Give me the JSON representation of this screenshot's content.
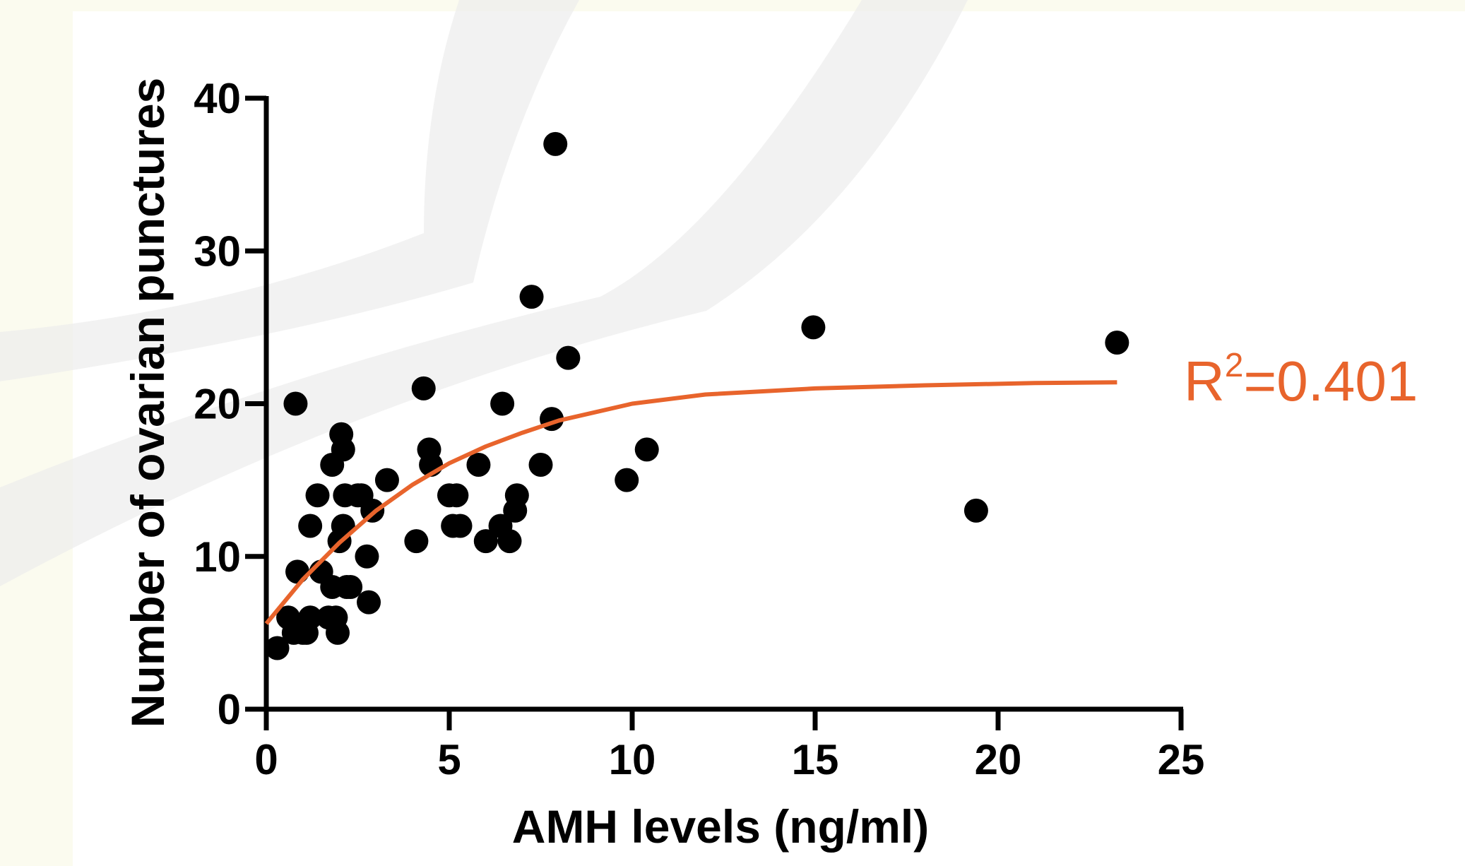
{
  "chart_data": {
    "type": "scatter",
    "xlabel": "AMH levels (ng/ml)",
    "ylabel": "Number of ovarian punctures",
    "xlim": [
      0,
      25
    ],
    "ylim": [
      0,
      40
    ],
    "x_ticks": [
      "0",
      "5",
      "10",
      "15",
      "20",
      "25"
    ],
    "y_ticks": [
      "0",
      "10",
      "20",
      "30",
      "40"
    ],
    "grid": false,
    "point_color": "#000000",
    "fit_color": "#e8642c",
    "points": [
      {
        "x": 0.3,
        "y": 4
      },
      {
        "x": 0.6,
        "y": 6
      },
      {
        "x": 0.75,
        "y": 5
      },
      {
        "x": 0.8,
        "y": 20
      },
      {
        "x": 0.85,
        "y": 9
      },
      {
        "x": 1.0,
        "y": 5
      },
      {
        "x": 1.1,
        "y": 5
      },
      {
        "x": 1.2,
        "y": 6
      },
      {
        "x": 1.2,
        "y": 12
      },
      {
        "x": 1.4,
        "y": 14
      },
      {
        "x": 1.5,
        "y": 9
      },
      {
        "x": 1.7,
        "y": 6
      },
      {
        "x": 1.8,
        "y": 16
      },
      {
        "x": 1.8,
        "y": 8
      },
      {
        "x": 1.9,
        "y": 6
      },
      {
        "x": 1.95,
        "y": 5
      },
      {
        "x": 2.0,
        "y": 11
      },
      {
        "x": 2.05,
        "y": 18
      },
      {
        "x": 2.1,
        "y": 17
      },
      {
        "x": 2.1,
        "y": 12
      },
      {
        "x": 2.15,
        "y": 14
      },
      {
        "x": 2.2,
        "y": 8
      },
      {
        "x": 2.3,
        "y": 8
      },
      {
        "x": 2.5,
        "y": 14
      },
      {
        "x": 2.6,
        "y": 14
      },
      {
        "x": 2.75,
        "y": 10
      },
      {
        "x": 2.8,
        "y": 7
      },
      {
        "x": 2.9,
        "y": 13
      },
      {
        "x": 3.3,
        "y": 15
      },
      {
        "x": 4.1,
        "y": 11
      },
      {
        "x": 4.3,
        "y": 21
      },
      {
        "x": 4.45,
        "y": 17
      },
      {
        "x": 4.5,
        "y": 16
      },
      {
        "x": 5.0,
        "y": 14
      },
      {
        "x": 5.1,
        "y": 12
      },
      {
        "x": 5.2,
        "y": 14
      },
      {
        "x": 5.3,
        "y": 12
      },
      {
        "x": 5.8,
        "y": 16
      },
      {
        "x": 6.0,
        "y": 11
      },
      {
        "x": 6.4,
        "y": 12
      },
      {
        "x": 6.45,
        "y": 20
      },
      {
        "x": 6.65,
        "y": 11
      },
      {
        "x": 6.8,
        "y": 13
      },
      {
        "x": 6.85,
        "y": 14
      },
      {
        "x": 7.25,
        "y": 27
      },
      {
        "x": 7.5,
        "y": 16
      },
      {
        "x": 7.8,
        "y": 19
      },
      {
        "x": 7.9,
        "y": 37
      },
      {
        "x": 8.25,
        "y": 23
      },
      {
        "x": 9.85,
        "y": 15
      },
      {
        "x": 10.4,
        "y": 17
      },
      {
        "x": 14.95,
        "y": 25
      },
      {
        "x": 19.4,
        "y": 13
      },
      {
        "x": 23.25,
        "y": 24
      }
    ],
    "fit": {
      "r2_label": "R",
      "r2_sup": "2",
      "r2_value": "=0.401",
      "curve": [
        {
          "x": 0,
          "y": 5.6
        },
        {
          "x": 1,
          "y": 8.5
        },
        {
          "x": 2,
          "y": 10.9
        },
        {
          "x": 3,
          "y": 13.0
        },
        {
          "x": 4,
          "y": 14.7
        },
        {
          "x": 5,
          "y": 16.1
        },
        {
          "x": 6,
          "y": 17.2
        },
        {
          "x": 7,
          "y": 18.1
        },
        {
          "x": 8,
          "y": 18.9
        },
        {
          "x": 10,
          "y": 20.0
        },
        {
          "x": 12,
          "y": 20.6
        },
        {
          "x": 15,
          "y": 21.0
        },
        {
          "x": 18,
          "y": 21.2
        },
        {
          "x": 21,
          "y": 21.35
        },
        {
          "x": 23.25,
          "y": 21.4
        }
      ]
    }
  }
}
